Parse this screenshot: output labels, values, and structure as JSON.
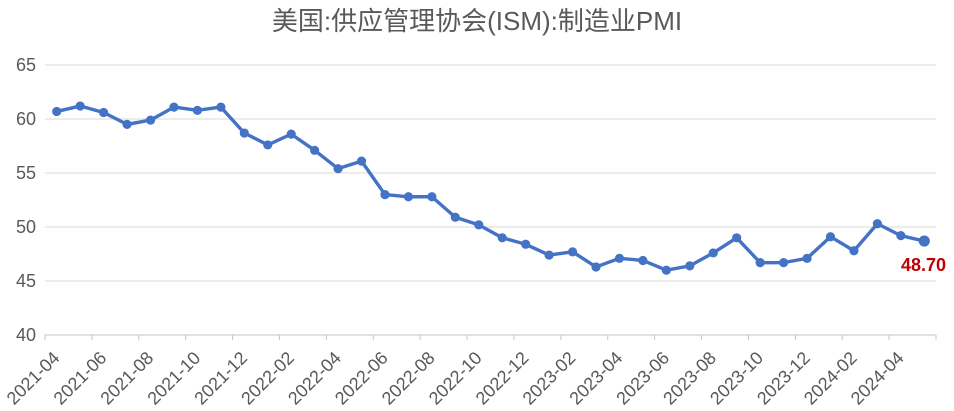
{
  "header": {
    "title": "美国:供应管理协会(ISM):制造业PMI"
  },
  "colors": {
    "series_line": "#4472C4",
    "marker": "#4472C4",
    "gridline": "#D9D9D9",
    "axis_line": "#C6C6C6",
    "tick_label": "#595959",
    "title_text": "#595959",
    "last_value_label": "#C00000",
    "background": "#FFFFFF"
  },
  "chart_data": {
    "type": "line",
    "title": "美国:供应管理协会(ISM):制造业PMI",
    "xlabel": "",
    "ylabel": "",
    "ylim": [
      40,
      65
    ],
    "y_ticks": [
      40,
      45,
      50,
      55,
      60,
      65
    ],
    "grid": "horizontal",
    "legend": "none",
    "marker_style": "circle",
    "x": [
      "2021-04",
      "2021-05",
      "2021-06",
      "2021-07",
      "2021-08",
      "2021-09",
      "2021-10",
      "2021-11",
      "2021-12",
      "2022-01",
      "2022-02",
      "2022-03",
      "2022-04",
      "2022-05",
      "2022-06",
      "2022-07",
      "2022-08",
      "2022-09",
      "2022-10",
      "2022-11",
      "2022-12",
      "2023-01",
      "2023-02",
      "2023-03",
      "2023-04",
      "2023-05",
      "2023-06",
      "2023-07",
      "2023-08",
      "2023-09",
      "2023-10",
      "2023-11",
      "2023-12",
      "2024-01",
      "2024-02",
      "2024-03",
      "2024-04",
      "2024-05"
    ],
    "values": [
      60.7,
      61.2,
      60.6,
      59.5,
      59.9,
      61.1,
      60.8,
      61.1,
      58.7,
      57.6,
      58.6,
      57.1,
      55.4,
      56.1,
      53.0,
      52.8,
      52.8,
      50.9,
      50.2,
      49.0,
      48.4,
      47.4,
      47.7,
      46.3,
      47.1,
      46.9,
      46.0,
      46.4,
      47.6,
      49.0,
      46.7,
      46.7,
      47.1,
      49.1,
      47.8,
      50.3,
      49.2,
      48.7
    ],
    "x_tick_labels": [
      "2021-04",
      "2021-06",
      "2021-08",
      "2021-10",
      "2021-12",
      "2022-02",
      "2022-04",
      "2022-06",
      "2022-08",
      "2022-10",
      "2022-12",
      "2023-02",
      "2023-04",
      "2023-06",
      "2023-08",
      "2023-10",
      "2023-12",
      "2024-02",
      "2024-04"
    ],
    "x_tick_label_every": 2,
    "last_value_label": "48.70"
  }
}
